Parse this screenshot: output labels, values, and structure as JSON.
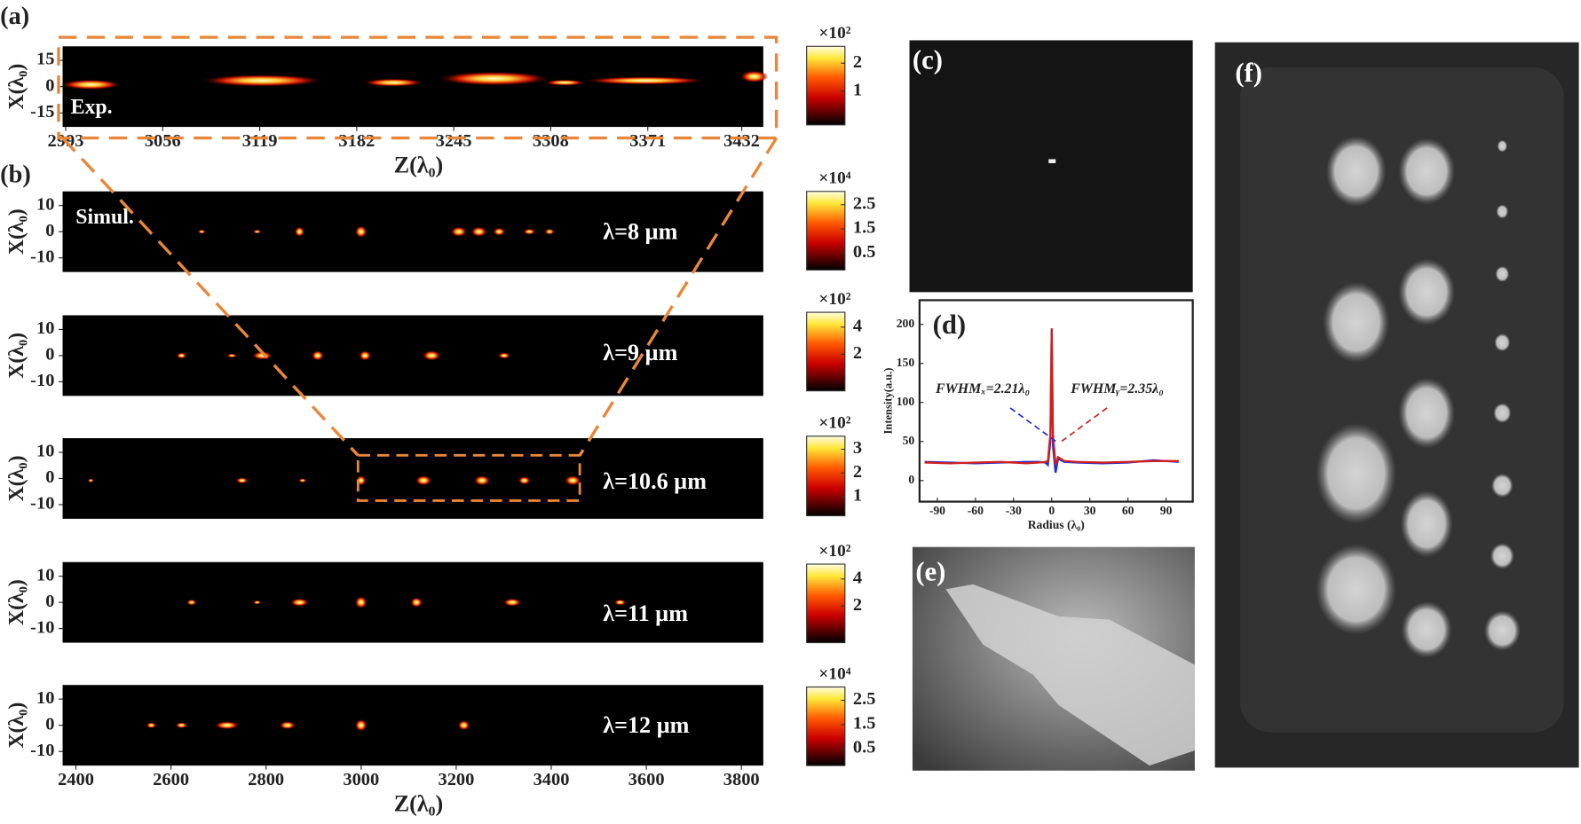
{
  "chart_data": [
    {
      "type": "heatmap",
      "panel_label": "(a)",
      "annotation": "Exp.",
      "xlabel": "Z(λ₀)",
      "ylabel": "X(λ₀)",
      "xlim": [
        2991,
        3446
      ],
      "xticks": [
        2993,
        3056,
        3119,
        3182,
        3245,
        3308,
        3371,
        3432
      ],
      "ylim": [
        -23,
        23
      ],
      "yticks": [
        -15,
        0,
        15
      ],
      "colorbar": {
        "label": "×10²",
        "lim": [
          -0.2,
          2.6
        ],
        "ticks": [
          1,
          2
        ]
      }
    },
    {
      "type": "heatmap",
      "panel_label": "(b)",
      "annotation": "Simul.",
      "wavelength": "λ=8 µm",
      "ylabel": "X(λ₀)",
      "xlim": [
        2372,
        3846
      ],
      "ylim": [
        -15.4,
        15.4
      ],
      "yticks": [
        -10,
        0,
        10
      ],
      "colorbar": {
        "label": "×10⁴",
        "lim": [
          -0.2,
          3.05
        ],
        "ticks": [
          0.5,
          1.5,
          2.5
        ]
      }
    },
    {
      "type": "heatmap",
      "wavelength": "λ=9 µm",
      "ylabel": "X(λ₀)",
      "xlim": [
        2372,
        3846
      ],
      "ylim": [
        -15.4,
        15.4
      ],
      "yticks": [
        -10,
        0,
        10
      ],
      "colorbar": {
        "label": "×10²",
        "lim": [
          -0.7,
          5.1
        ],
        "ticks": [
          2,
          4
        ]
      }
    },
    {
      "type": "heatmap",
      "wavelength": "λ=10.6 µm",
      "ylabel": "X(λ₀)",
      "xlim": [
        2372,
        3846
      ],
      "ylim": [
        -15.4,
        15.4
      ],
      "yticks": [
        -10,
        0,
        10
      ],
      "colorbar": {
        "label": "×10²",
        "lim": [
          0.2,
          3.55
        ],
        "ticks": [
          1,
          2,
          3
        ]
      }
    },
    {
      "type": "heatmap",
      "wavelength": "λ=11 µm",
      "ylabel": "X(λ₀)",
      "xlim": [
        2372,
        3846
      ],
      "ylim": [
        -15.4,
        15.4
      ],
      "yticks": [
        -10,
        0,
        10
      ],
      "colorbar": {
        "label": "×10²",
        "lim": [
          -0.7,
          5.1
        ],
        "ticks": [
          2,
          4
        ]
      }
    },
    {
      "type": "heatmap",
      "wavelength": "λ=12 µm",
      "ylabel": "X(λ₀)",
      "xlabel": "Z(λ₀)",
      "xlim": [
        2372,
        3846
      ],
      "xticks": [
        2400,
        2600,
        2800,
        3000,
        3200,
        3400,
        3600,
        3800
      ],
      "ylim": [
        -15.4,
        15.4
      ],
      "yticks": [
        -10,
        0,
        10
      ],
      "colorbar": {
        "label": "×10⁴",
        "lim": [
          -0.2,
          3.05
        ],
        "ticks": [
          0.5,
          1.5,
          2.5
        ]
      }
    },
    {
      "type": "image",
      "panel_label": "(c)"
    },
    {
      "type": "line",
      "panel_label": "(d)",
      "xlabel": "Radius (λ₀)",
      "ylabel": "Intensity(a.u.)",
      "xlim": [
        -104,
        111
      ],
      "xticks": [
        -90,
        -60,
        -30,
        0,
        30,
        60,
        90
      ],
      "ylim": [
        -27,
        231
      ],
      "yticks": [
        0,
        50,
        100,
        150,
        200
      ],
      "annotations": [
        "FWHMₓ=2.21λ₀",
        "FWHMᵧ=2.35λ₀"
      ],
      "series": [
        {
          "color": "#d01f1f",
          "x": [
            -100,
            -80,
            -60,
            -40,
            -20,
            -10,
            -5,
            -3,
            -1,
            0,
            1,
            3,
            5,
            10,
            20,
            40,
            60,
            80,
            100
          ],
          "values": [
            23,
            22,
            23,
            24,
            22,
            23,
            24,
            25,
            60,
            195,
            60,
            20,
            30,
            25,
            24,
            23,
            24,
            25,
            25
          ]
        },
        {
          "color": "#1f2fd0",
          "x": [
            -100,
            -80,
            -60,
            -40,
            -20,
            -10,
            -5,
            -3,
            -1,
            0,
            1,
            3,
            5,
            10,
            20,
            40,
            60,
            80,
            100
          ],
          "values": [
            24,
            23,
            22,
            23,
            24,
            24,
            23,
            20,
            50,
            193,
            45,
            10,
            28,
            24,
            23,
            22,
            23,
            26,
            24
          ]
        }
      ]
    },
    {
      "type": "image",
      "panel_label": "(e)"
    },
    {
      "type": "image",
      "panel_label": "(f)"
    }
  ]
}
